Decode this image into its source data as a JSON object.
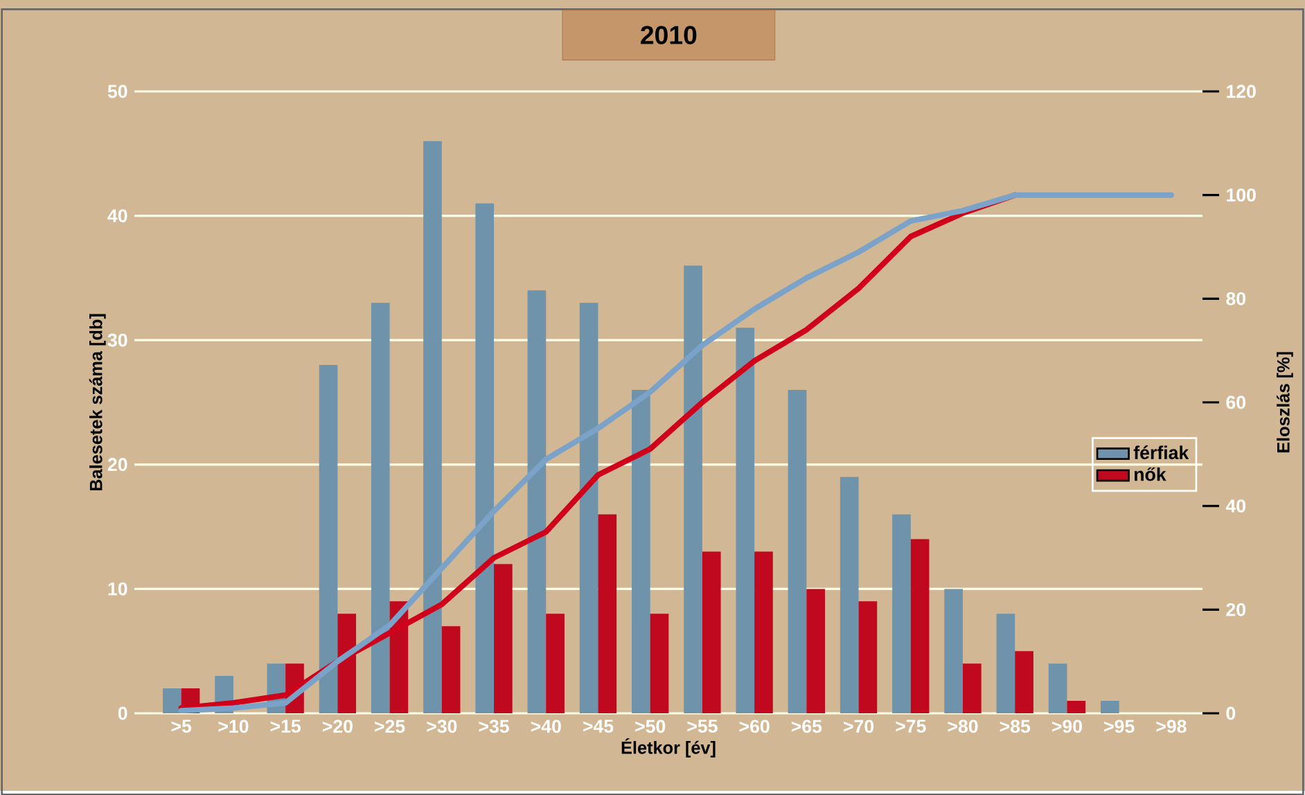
{
  "chart_data": {
    "type": "bar",
    "title": "2010",
    "xlabel": "Életkor [év]",
    "ylabel": "Balesetek száma [db]",
    "y2label": "Eloszlás [%]",
    "categories": [
      ">5",
      ">10",
      ">15",
      ">20",
      ">25",
      ">30",
      ">35",
      ">40",
      ">45",
      ">50",
      ">55",
      ">60",
      ">65",
      ">70",
      ">75",
      ">80",
      ">85",
      ">90",
      ">95",
      ">98"
    ],
    "series": [
      {
        "name": "férfiak",
        "color": "#6f93aa",
        "values": [
          2,
          3,
          4,
          28,
          33,
          46,
          41,
          34,
          33,
          26,
          36,
          31,
          26,
          19,
          16,
          10,
          8,
          4,
          1,
          null
        ]
      },
      {
        "name": "nők",
        "color": "#c0091e",
        "values": [
          2,
          null,
          4,
          8,
          9,
          7,
          12,
          8,
          16,
          8,
          13,
          13,
          10,
          9,
          14,
          4,
          5,
          1,
          null,
          null
        ]
      },
      {
        "type": "line",
        "axis": "y2",
        "color": "#d0021b",
        "values": [
          1,
          2,
          3.5,
          10,
          15.5,
          21,
          30,
          35,
          46,
          51,
          60,
          68,
          74,
          82,
          92,
          96.5,
          100,
          null,
          null,
          null
        ]
      },
      {
        "type": "line",
        "axis": "y2",
        "color": "#7ba3c9",
        "values": [
          0.5,
          1,
          2,
          10,
          17,
          28,
          39,
          49,
          55,
          62,
          71,
          78,
          84,
          89,
          95,
          97,
          100,
          100,
          100,
          100
        ]
      }
    ],
    "ylim": [
      0,
      50
    ],
    "yticks": [
      0,
      10,
      20,
      30,
      40,
      50
    ],
    "y2lim": [
      0,
      120
    ],
    "y2ticks": [
      0,
      20,
      40,
      60,
      80,
      100,
      120
    ],
    "grid": "y",
    "legend": "right"
  }
}
